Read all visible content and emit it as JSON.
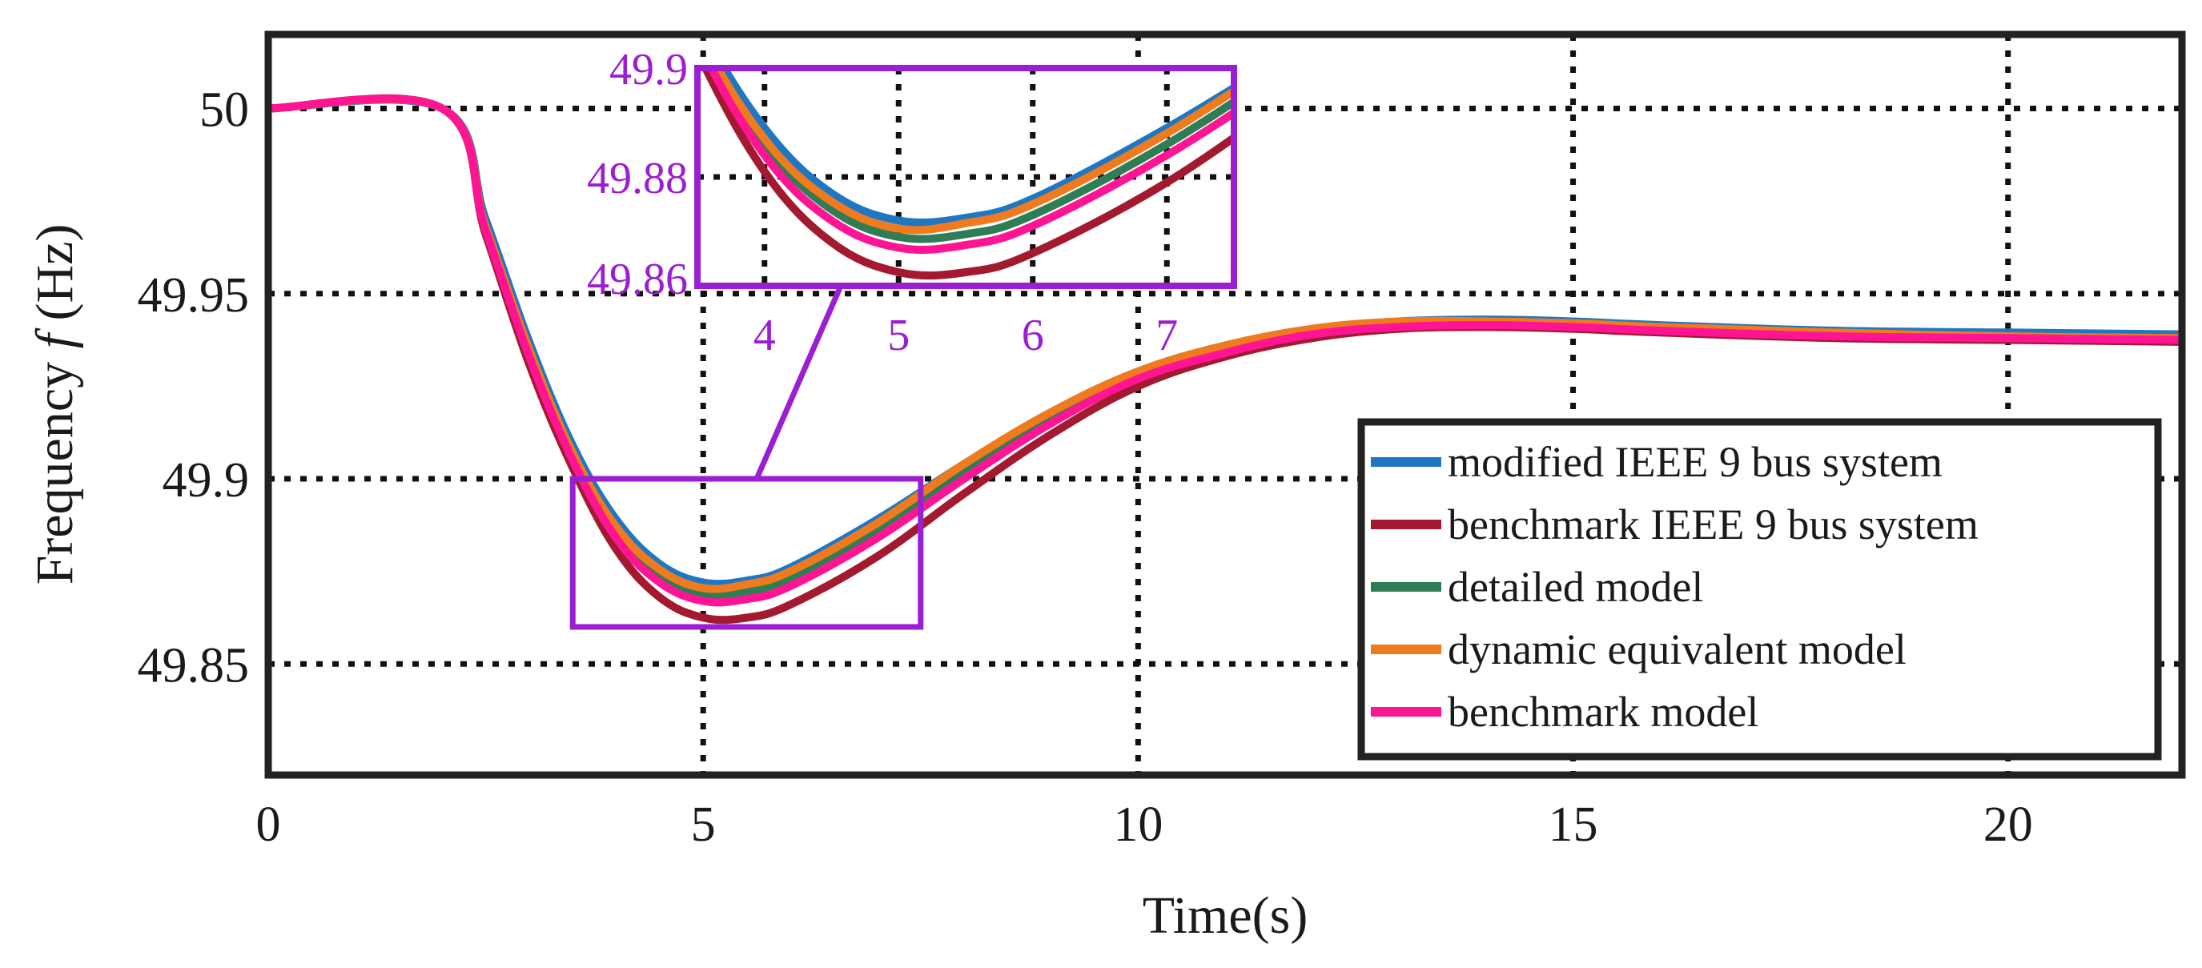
{
  "chart_data": {
    "type": "line",
    "title": "",
    "xlabel": "Time(s)",
    "ylabel_prefix": "Frequency ",
    "ylabel_var": "f",
    "ylabel_suffix": " (Hz)",
    "xlim": [
      0,
      22
    ],
    "ylim": [
      49.82,
      50.02
    ],
    "xticks": [
      0,
      5,
      10,
      15,
      20
    ],
    "xtick_labels": [
      "0",
      "5",
      "10",
      "15",
      "20"
    ],
    "yticks": [
      49.85,
      49.9,
      49.95,
      50
    ],
    "ytick_labels": [
      "49.85",
      "49.9",
      "49.95",
      "50"
    ],
    "grid": true,
    "legend_position": "lower-right",
    "colors": {
      "modified": "#1f77c4",
      "benchmark_ieee": "#a3192f",
      "detailed": "#2e7d55",
      "dynamic": "#f07a1e",
      "benchmark_model": "#ff1493",
      "inset": "#9b1fd1"
    },
    "series": [
      {
        "key": "modified",
        "name": "modified IEEE 9 bus system",
        "color": "#1f77c4",
        "x": [
          0,
          2,
          2.5,
          3,
          3.5,
          4,
          4.5,
          5,
          5.5,
          6,
          7,
          8,
          9,
          10,
          11,
          12,
          13,
          14,
          15,
          16,
          18,
          20,
          22
        ],
        "y": [
          50,
          50,
          49.97,
          49.937,
          49.909,
          49.889,
          49.877,
          49.872,
          49.8725,
          49.876,
          49.889,
          49.904,
          49.918,
          49.929,
          49.936,
          49.9405,
          49.9425,
          49.943,
          49.9425,
          49.9415,
          49.94,
          49.9395,
          49.939
        ]
      },
      {
        "key": "benchmark_ieee",
        "name": "benchmark IEEE 9 bus system",
        "color": "#a3192f",
        "x": [
          0,
          2,
          2.5,
          3,
          3.5,
          4,
          4.5,
          5,
          5.5,
          6,
          7,
          8,
          9,
          10,
          11,
          12,
          13,
          14,
          15,
          16,
          18,
          20,
          22
        ],
        "y": [
          50,
          50,
          49.966,
          49.931,
          49.903,
          49.881,
          49.868,
          49.8625,
          49.8625,
          49.866,
          49.879,
          49.896,
          49.912,
          49.925,
          49.933,
          49.938,
          49.9405,
          49.941,
          49.9405,
          49.9395,
          49.938,
          49.9375,
          49.937
        ]
      },
      {
        "key": "detailed",
        "name": "detailed model",
        "color": "#2e7d55",
        "x": [
          0,
          2,
          2.5,
          3,
          3.5,
          4,
          4.5,
          5,
          5.5,
          6,
          7,
          8,
          9,
          10,
          11,
          12,
          13,
          14,
          15,
          16,
          18,
          20,
          22
        ],
        "y": [
          50,
          50,
          49.968,
          49.934,
          49.906,
          49.886,
          49.874,
          49.869,
          49.8695,
          49.873,
          49.886,
          49.902,
          49.916,
          49.928,
          49.935,
          49.9395,
          49.9415,
          49.942,
          49.9415,
          49.9405,
          49.939,
          49.9385,
          49.938
        ]
      },
      {
        "key": "dynamic",
        "name": "dynamic equivalent model",
        "color": "#f07a1e",
        "x": [
          0,
          2,
          2.5,
          3,
          3.5,
          4,
          4.5,
          5,
          5.5,
          6,
          7,
          8,
          9,
          10,
          11,
          12,
          13,
          14,
          15,
          16,
          18,
          20,
          22
        ],
        "y": [
          50,
          50,
          49.968,
          49.935,
          49.907,
          49.887,
          49.8755,
          49.8705,
          49.8715,
          49.875,
          49.888,
          49.904,
          49.918,
          49.929,
          49.936,
          49.9405,
          49.9425,
          49.9425,
          49.942,
          49.941,
          49.9395,
          49.9385,
          49.938
        ]
      },
      {
        "key": "benchmark_model",
        "name": "benchmark model",
        "color": "#ff1493",
        "x": [
          0,
          2,
          2.5,
          3,
          3.5,
          4,
          4.5,
          5,
          5.5,
          6,
          7,
          8,
          9,
          10,
          11,
          12,
          13,
          14,
          15,
          16,
          18,
          20,
          22
        ],
        "y": [
          50,
          50,
          49.967,
          49.933,
          49.905,
          49.884,
          49.872,
          49.867,
          49.8675,
          49.871,
          49.884,
          49.9,
          49.915,
          49.927,
          49.934,
          49.939,
          49.941,
          49.9415,
          49.941,
          49.94,
          49.9385,
          49.938,
          49.9375
        ]
      }
    ],
    "zoom_region": {
      "x": [
        3.5,
        7.5
      ],
      "y": [
        49.86,
        49.9
      ]
    },
    "inset": {
      "xticks": [
        4,
        5,
        6,
        7
      ],
      "xtick_labels": [
        "4",
        "5",
        "6",
        "7"
      ],
      "yticks": [
        49.86,
        49.88,
        49.9
      ],
      "ytick_labels": [
        "49.86",
        "49.88",
        "49.9"
      ],
      "xlim": [
        3.5,
        7.5
      ],
      "ylim": [
        49.86,
        49.9
      ]
    }
  }
}
